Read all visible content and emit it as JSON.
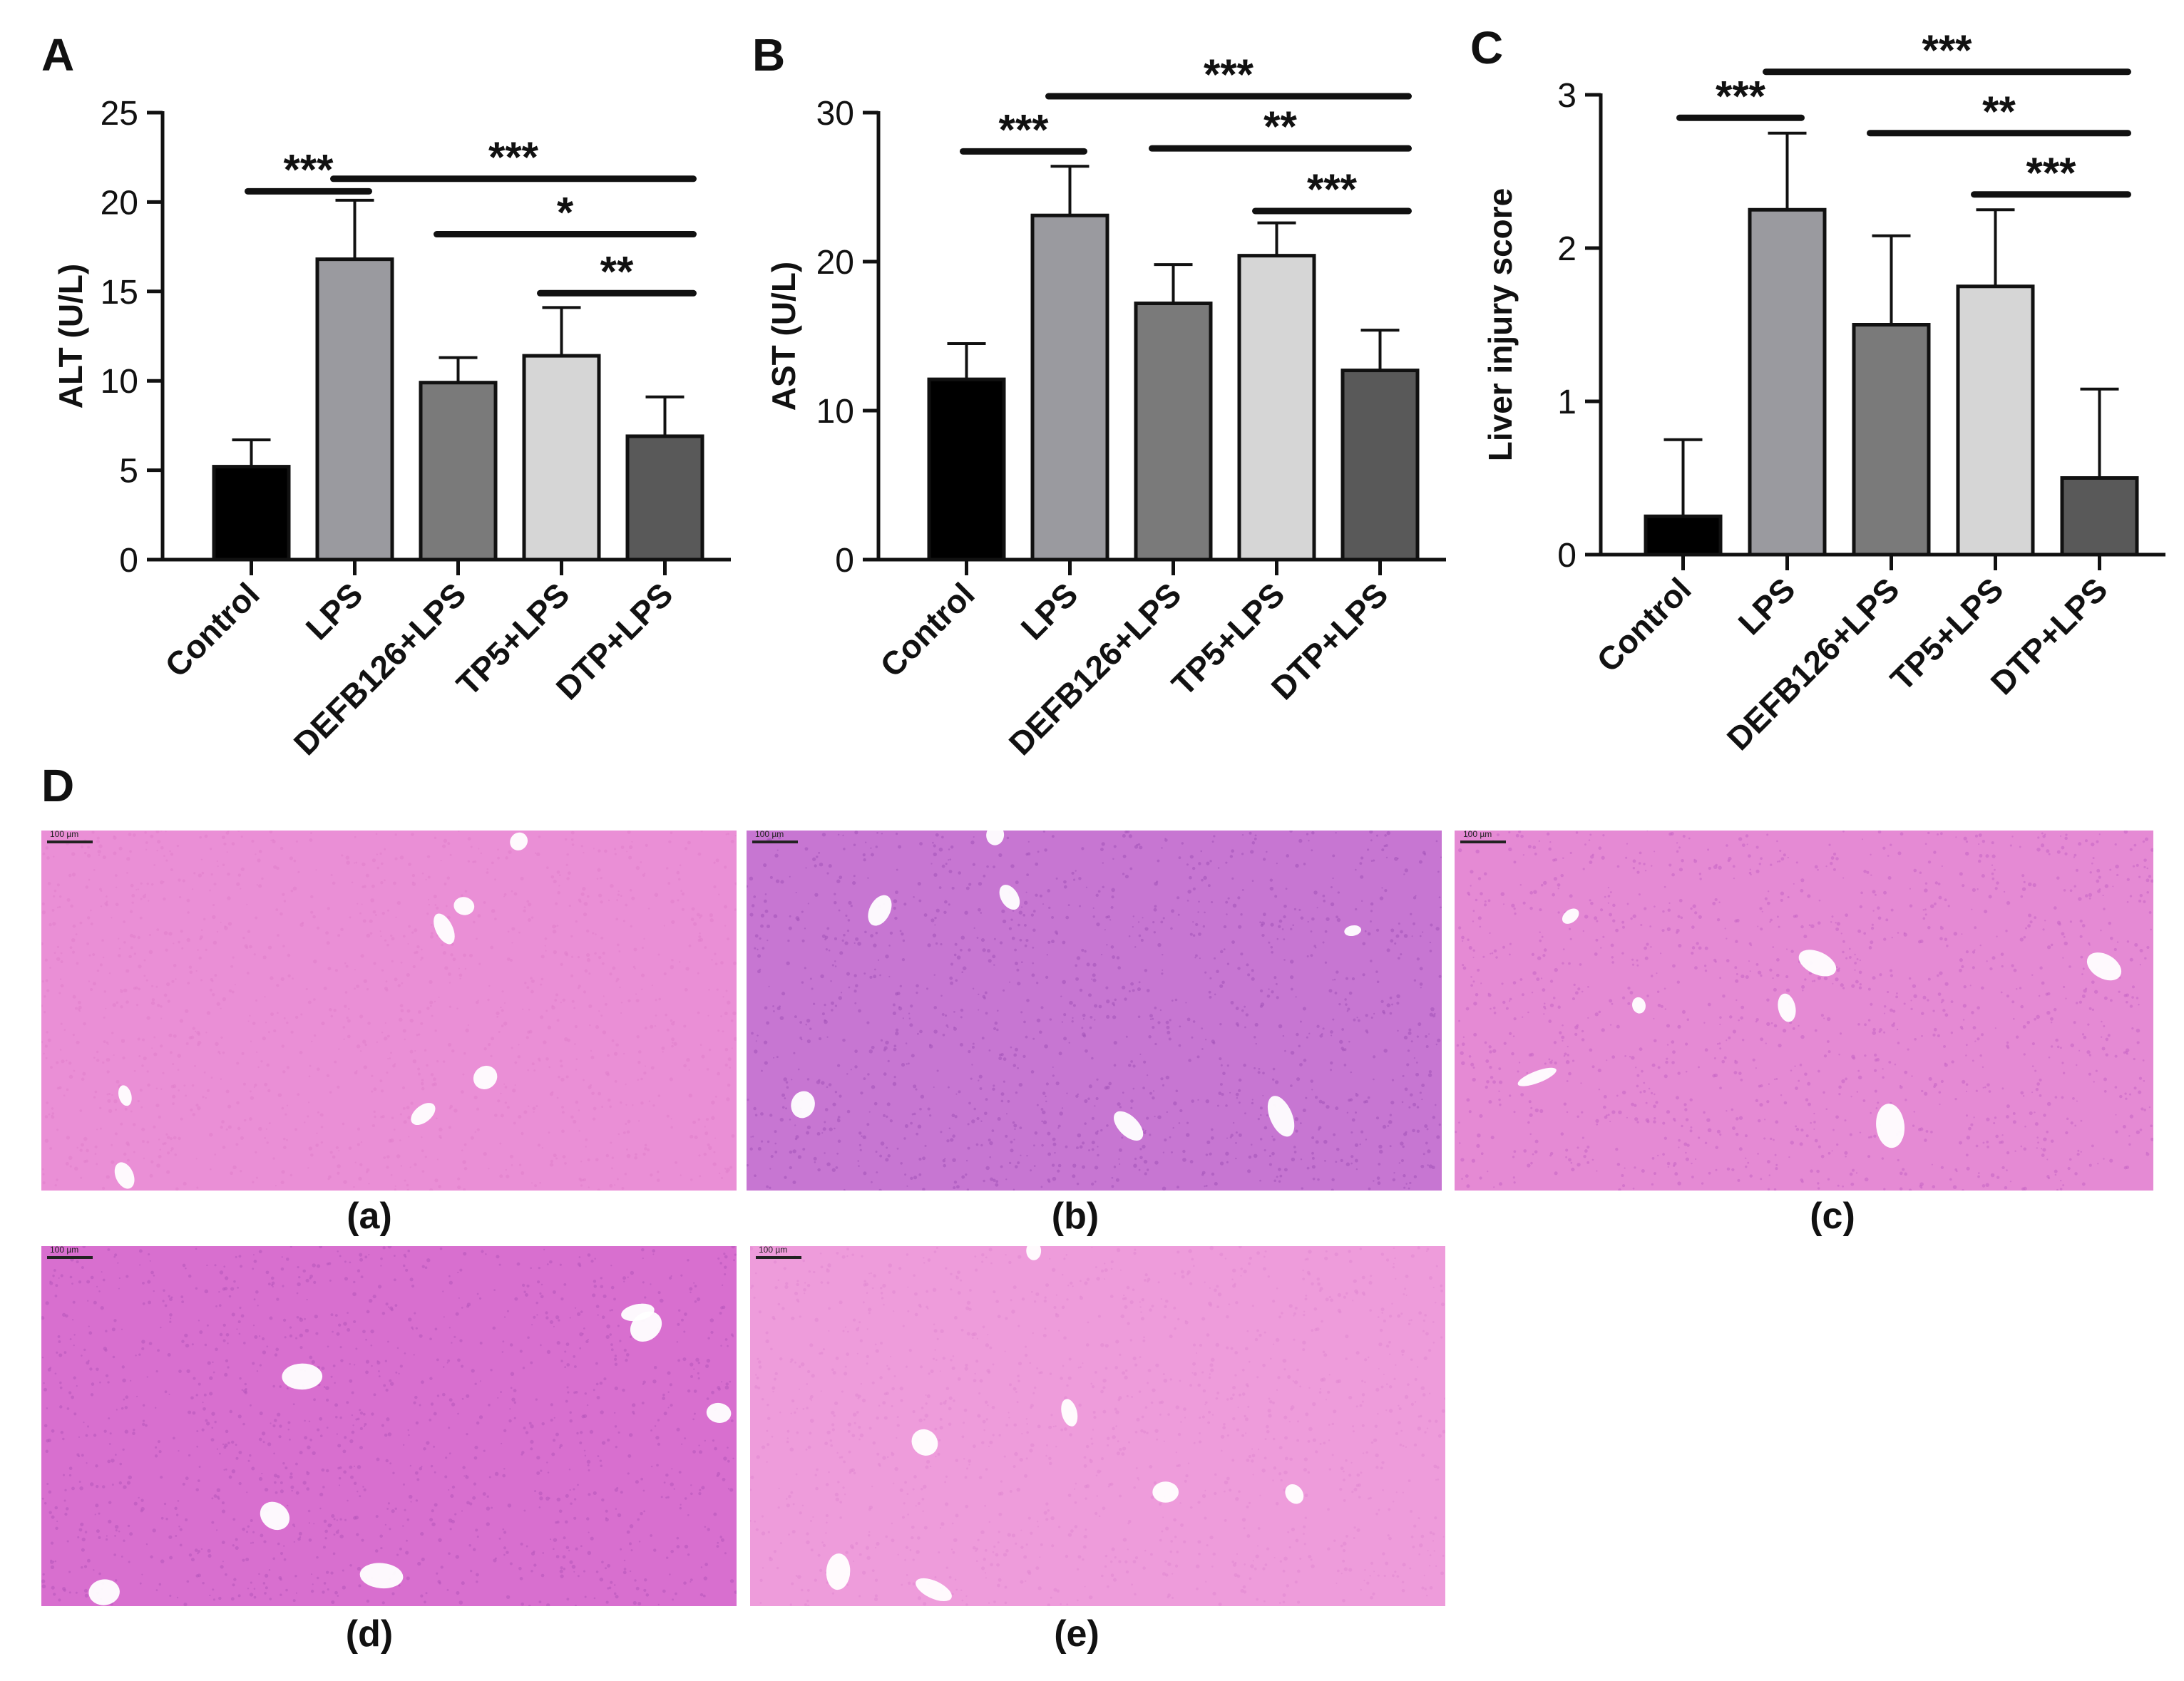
{
  "panels": [
    {
      "letter": "A"
    },
    {
      "letter": "B"
    },
    {
      "letter": "C"
    },
    {
      "letter": "D"
    }
  ],
  "chart_data": [
    {
      "type": "bar",
      "panel": "A",
      "categories": [
        "Control",
        "LPS",
        "DEFB126+LPS",
        "TP5+LPS",
        "DTP+LPS"
      ],
      "values": [
        5.2,
        16.8,
        9.9,
        11.4,
        6.9
      ],
      "errors": [
        1.5,
        3.3,
        1.4,
        2.7,
        2.2
      ],
      "ylabel": "ALT (U/L)",
      "ylim": [
        0,
        25
      ],
      "yticks": [
        0,
        5,
        10,
        15,
        20,
        25
      ],
      "ytick_labels": [
        "0",
        "5",
        "10",
        "15",
        "20",
        "25"
      ],
      "bar_colors": [
        "#000000",
        "#9a9a9f",
        "#7a7a7a",
        "#d6d6d6",
        "#595959"
      ],
      "significance": [
        {
          "from": 0,
          "to": 1,
          "label": "***",
          "y": 20.6
        },
        {
          "from": 1,
          "to": 4,
          "label": "***",
          "y": 21.3
        },
        {
          "from": 2,
          "to": 4,
          "label": "*",
          "y": 18.2
        },
        {
          "from": 3,
          "to": 4,
          "label": "**",
          "y": 14.9
        }
      ]
    },
    {
      "type": "bar",
      "panel": "B",
      "categories": [
        "Control",
        "LPS",
        "DEFB126+LPS",
        "TP5+LPS",
        "DTP+LPS"
      ],
      "values": [
        12.1,
        23.1,
        17.2,
        20.4,
        12.7
      ],
      "errors": [
        2.4,
        3.3,
        2.6,
        2.2,
        2.7
      ],
      "ylabel": "AST (U/L)",
      "ylim": [
        0,
        30
      ],
      "yticks": [
        0,
        10,
        20,
        30
      ],
      "ytick_labels": [
        "0",
        "10",
        "20",
        "30"
      ],
      "bar_colors": [
        "#000000",
        "#9a9a9f",
        "#7a7a7a",
        "#d6d6d6",
        "#595959"
      ],
      "significance": [
        {
          "from": 0,
          "to": 1,
          "label": "***",
          "y": 27.4
        },
        {
          "from": 1,
          "to": 4,
          "label": "***",
          "y": 31.1
        },
        {
          "from": 2,
          "to": 4,
          "label": "**",
          "y": 27.6
        },
        {
          "from": 3,
          "to": 4,
          "label": "***",
          "y": 23.4
        }
      ]
    },
    {
      "type": "bar",
      "panel": "C",
      "categories": [
        "Control",
        "LPS",
        "DEFB126+LPS",
        "TP5+LPS",
        "DTP+LPS"
      ],
      "values": [
        0.25,
        2.25,
        1.5,
        1.75,
        0.5
      ],
      "errors": [
        0.5,
        0.5,
        0.58,
        0.5,
        0.58
      ],
      "ylabel": "Liver injury score",
      "ylim": [
        0,
        3
      ],
      "yticks": [
        0,
        1,
        2,
        3
      ],
      "ytick_labels": [
        "0",
        "1",
        "2",
        "3"
      ],
      "bar_colors": [
        "#000000",
        "#9a9a9f",
        "#7a7a7a",
        "#d6d6d6",
        "#595959"
      ],
      "significance": [
        {
          "from": 0,
          "to": 1,
          "label": "***",
          "y": 2.85
        },
        {
          "from": 1,
          "to": 4,
          "label": "***",
          "y": 3.15
        },
        {
          "from": 2,
          "to": 4,
          "label": "**",
          "y": 2.75
        },
        {
          "from": 3,
          "to": 4,
          "label": "***",
          "y": 2.35
        }
      ]
    }
  ],
  "micrographs": [
    {
      "label": "(a)",
      "scale": "100 µm",
      "color": "#ea8fd6",
      "texture": "#e080cc"
    },
    {
      "label": "(b)",
      "scale": "100 µm",
      "color": "#c776d2",
      "texture": "#a352b8"
    },
    {
      "label": "(c)",
      "scale": "100 µm",
      "color": "#e58ad4",
      "texture": "#c765c4"
    },
    {
      "label": "(d)",
      "scale": "100 µm",
      "color": "#d86fcf",
      "texture": "#b655bb"
    },
    {
      "label": "(e)",
      "scale": "100 µm",
      "color": "#ee9cdb",
      "texture": "#e288d2"
    }
  ]
}
